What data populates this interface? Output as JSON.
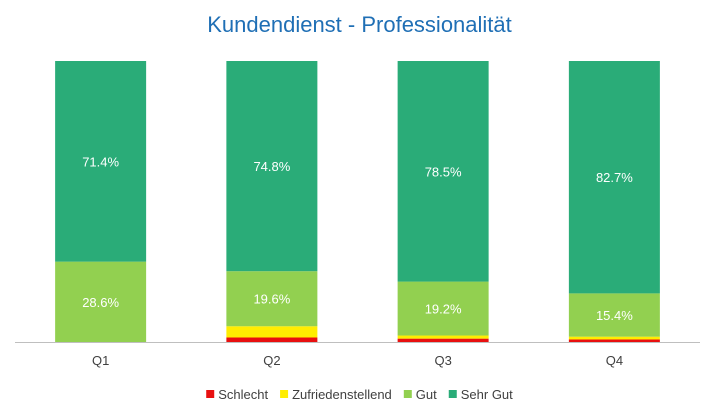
{
  "chart_data": {
    "type": "bar",
    "stacked": true,
    "normalized": true,
    "title": "Kundendienst - Professionalität",
    "xlabel": "",
    "ylabel": "",
    "ylim": [
      0,
      100
    ],
    "grid": false,
    "legend_position": "bottom",
    "categories": [
      "Q1",
      "Q2",
      "Q3",
      "Q4"
    ],
    "series": [
      {
        "name": "Schlecht",
        "color": "#e81010",
        "values": [
          0,
          1.6,
          1.2,
          0.9
        ],
        "labels": [
          "",
          "",
          "",
          ""
        ]
      },
      {
        "name": "Zufriedenstellend",
        "color": "#ffed00",
        "values": [
          0,
          4.0,
          1.1,
          1.0
        ],
        "labels": [
          "",
          "",
          "",
          ""
        ]
      },
      {
        "name": "Gut",
        "color": "#92d050",
        "values": [
          28.6,
          19.6,
          19.2,
          15.4
        ],
        "labels": [
          "28.6%",
          "19.6%",
          "19.2%",
          "15.4%"
        ]
      },
      {
        "name": "Sehr Gut",
        "color": "#2aac78",
        "values": [
          71.4,
          74.8,
          78.5,
          82.7
        ],
        "labels": [
          "71.4%",
          "74.8%",
          "78.5%",
          "82.7%"
        ]
      }
    ]
  }
}
